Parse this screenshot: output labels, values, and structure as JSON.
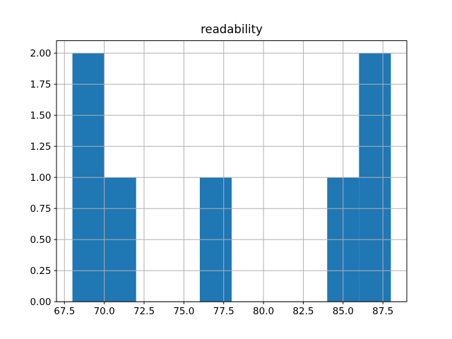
{
  "figure": {
    "background": "#ffffff"
  },
  "chart_data": {
    "type": "bar",
    "chart_kind": "histogram",
    "title": "readability",
    "xlabel": "",
    "ylabel": "",
    "bin_edges": [
      68,
      70,
      72,
      74,
      76,
      78,
      80,
      82,
      84,
      86,
      88
    ],
    "counts": [
      2,
      1,
      0,
      0,
      1,
      0,
      0,
      0,
      1,
      2
    ],
    "xlim": [
      67,
      89
    ],
    "ylim": [
      0,
      2.1
    ],
    "x_ticks": [
      67.5,
      70.0,
      72.5,
      75.0,
      77.5,
      80.0,
      82.5,
      85.0,
      87.5
    ],
    "x_tick_labels": [
      "67.5",
      "70.0",
      "72.5",
      "75.0",
      "77.5",
      "80.0",
      "82.5",
      "85.0",
      "87.5"
    ],
    "y_ticks": [
      0,
      0.25,
      0.5,
      0.75,
      1.0,
      1.25,
      1.5,
      1.75,
      2.0
    ],
    "y_tick_labels": [
      "0.00",
      "0.25",
      "0.50",
      "0.75",
      "1.00",
      "1.25",
      "1.50",
      "1.75",
      "2.00"
    ],
    "grid": true,
    "grid_above_bars": true,
    "legend": null,
    "colors": {
      "bar": "#1f77b4",
      "grid": "#b0b0b0",
      "spine": "#000000",
      "tick": "#000000",
      "text": "#000000",
      "background": "#ffffff"
    }
  }
}
